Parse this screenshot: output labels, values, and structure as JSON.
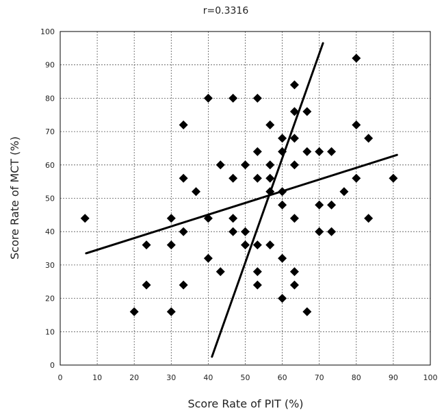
{
  "chart_data": {
    "type": "scatter",
    "title": "r=0.3316",
    "xlabel": "Score Rate of PIT (%)",
    "ylabel": "Score Rate of MCT (%)",
    "xlim": [
      0,
      100
    ],
    "ylim": [
      0,
      100
    ],
    "xticks": [
      "0",
      "10",
      "20",
      "30",
      "40",
      "50",
      "60",
      "70",
      "80",
      "90",
      "100"
    ],
    "yticks": [
      "0",
      "10",
      "20",
      "30",
      "40",
      "50",
      "60",
      "70",
      "80",
      "90",
      "100"
    ],
    "grid": true,
    "marker": "diamond",
    "points": [
      {
        "x": 6.7,
        "y": 44
      },
      {
        "x": 20,
        "y": 16
      },
      {
        "x": 23.3,
        "y": 36
      },
      {
        "x": 23.3,
        "y": 24
      },
      {
        "x": 30,
        "y": 44
      },
      {
        "x": 30,
        "y": 36
      },
      {
        "x": 30,
        "y": 16
      },
      {
        "x": 33.3,
        "y": 72
      },
      {
        "x": 33.3,
        "y": 56
      },
      {
        "x": 33.3,
        "y": 40
      },
      {
        "x": 33.3,
        "y": 24
      },
      {
        "x": 36.7,
        "y": 52
      },
      {
        "x": 40,
        "y": 80
      },
      {
        "x": 40,
        "y": 44
      },
      {
        "x": 40,
        "y": 32
      },
      {
        "x": 43.3,
        "y": 60
      },
      {
        "x": 43.3,
        "y": 28
      },
      {
        "x": 46.7,
        "y": 80
      },
      {
        "x": 46.7,
        "y": 56
      },
      {
        "x": 46.7,
        "y": 44
      },
      {
        "x": 46.7,
        "y": 40
      },
      {
        "x": 50,
        "y": 60
      },
      {
        "x": 50,
        "y": 40
      },
      {
        "x": 50,
        "y": 36
      },
      {
        "x": 53.3,
        "y": 80
      },
      {
        "x": 53.3,
        "y": 64
      },
      {
        "x": 53.3,
        "y": 56
      },
      {
        "x": 53.3,
        "y": 36
      },
      {
        "x": 53.3,
        "y": 28
      },
      {
        "x": 53.3,
        "y": 24
      },
      {
        "x": 56.7,
        "y": 72
      },
      {
        "x": 56.7,
        "y": 60
      },
      {
        "x": 56.7,
        "y": 56
      },
      {
        "x": 56.7,
        "y": 52
      },
      {
        "x": 56.7,
        "y": 36
      },
      {
        "x": 60,
        "y": 68
      },
      {
        "x": 60,
        "y": 64
      },
      {
        "x": 60,
        "y": 52
      },
      {
        "x": 60,
        "y": 48
      },
      {
        "x": 60,
        "y": 32
      },
      {
        "x": 60,
        "y": 20
      },
      {
        "x": 63.3,
        "y": 84
      },
      {
        "x": 63.3,
        "y": 76
      },
      {
        "x": 63.3,
        "y": 68
      },
      {
        "x": 63.3,
        "y": 60
      },
      {
        "x": 63.3,
        "y": 44
      },
      {
        "x": 63.3,
        "y": 28
      },
      {
        "x": 63.3,
        "y": 24
      },
      {
        "x": 66.7,
        "y": 76
      },
      {
        "x": 66.7,
        "y": 64
      },
      {
        "x": 66.7,
        "y": 16
      },
      {
        "x": 70,
        "y": 64
      },
      {
        "x": 70,
        "y": 48
      },
      {
        "x": 70,
        "y": 40
      },
      {
        "x": 73.3,
        "y": 64
      },
      {
        "x": 73.3,
        "y": 48
      },
      {
        "x": 73.3,
        "y": 40
      },
      {
        "x": 76.7,
        "y": 52
      },
      {
        "x": 80,
        "y": 92
      },
      {
        "x": 80,
        "y": 72
      },
      {
        "x": 80,
        "y": 56
      },
      {
        "x": 83.3,
        "y": 68
      },
      {
        "x": 83.3,
        "y": 44
      },
      {
        "x": 90,
        "y": 56
      }
    ],
    "lines": [
      {
        "x1": 7,
        "y1": 33.5,
        "x2": 91,
        "y2": 63
      },
      {
        "x1": 41,
        "y1": 2.5,
        "x2": 71,
        "y2": 96.5
      }
    ]
  }
}
